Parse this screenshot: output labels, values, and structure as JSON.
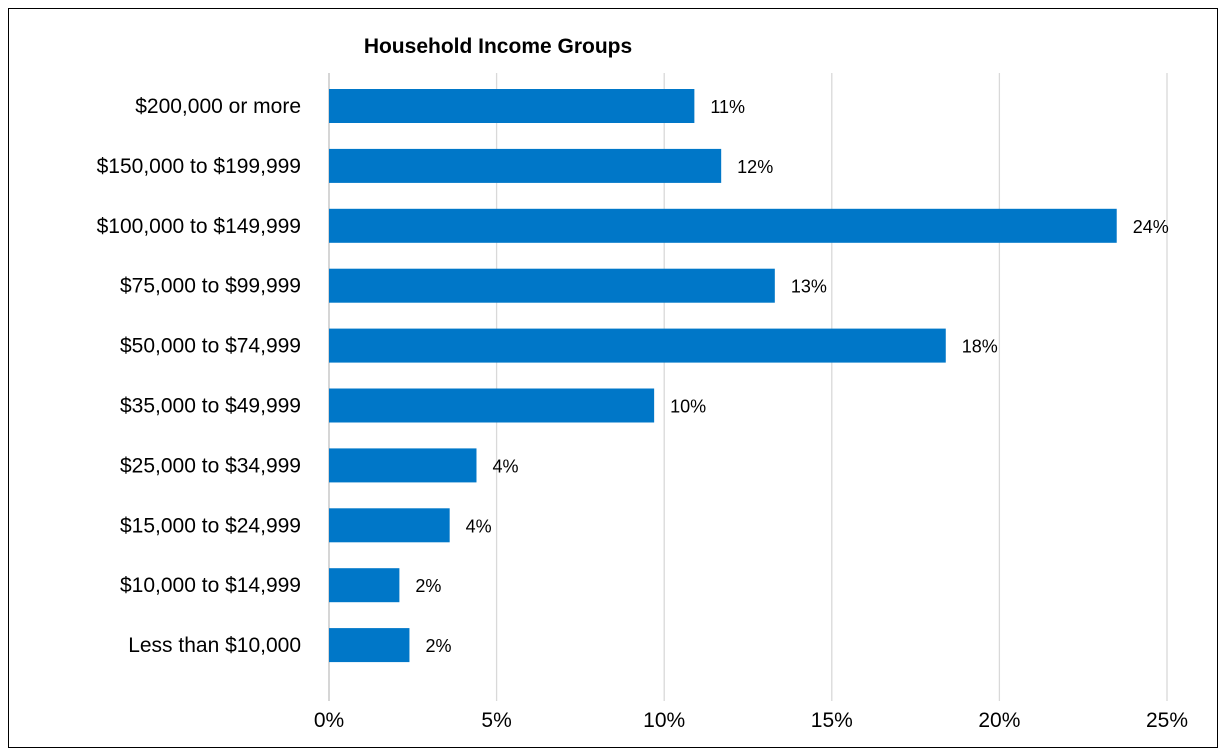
{
  "chart_data": {
    "type": "bar",
    "orientation": "horizontal",
    "title": "Household Income Groups",
    "xlabel": "",
    "ylabel": "",
    "categories": [
      "$200,000 or more",
      "$150,000 to $199,999",
      "$100,000 to $149,999",
      "$75,000 to $99,999",
      "$50,000 to $74,999",
      "$35,000 to $49,999",
      "$25,000 to $34,999",
      "$15,000 to $24,999",
      "$10,000 to $14,999",
      "Less than $10,000"
    ],
    "values": [
      10.9,
      11.7,
      23.5,
      13.3,
      18.4,
      9.7,
      4.4,
      3.6,
      2.1,
      2.4
    ],
    "data_labels": [
      "11%",
      "12%",
      "24%",
      "13%",
      "18%",
      "10%",
      "4%",
      "4%",
      "2%",
      "2%"
    ],
    "xlim": [
      0,
      25
    ],
    "x_ticks": [
      0,
      5,
      10,
      15,
      20,
      25
    ],
    "x_tick_labels": [
      "0%",
      "5%",
      "10%",
      "15%",
      "20%",
      "25%"
    ],
    "grid": true,
    "legend": "none",
    "bar_color": "#0077C8",
    "gridline_color": "#D9D9D9"
  }
}
